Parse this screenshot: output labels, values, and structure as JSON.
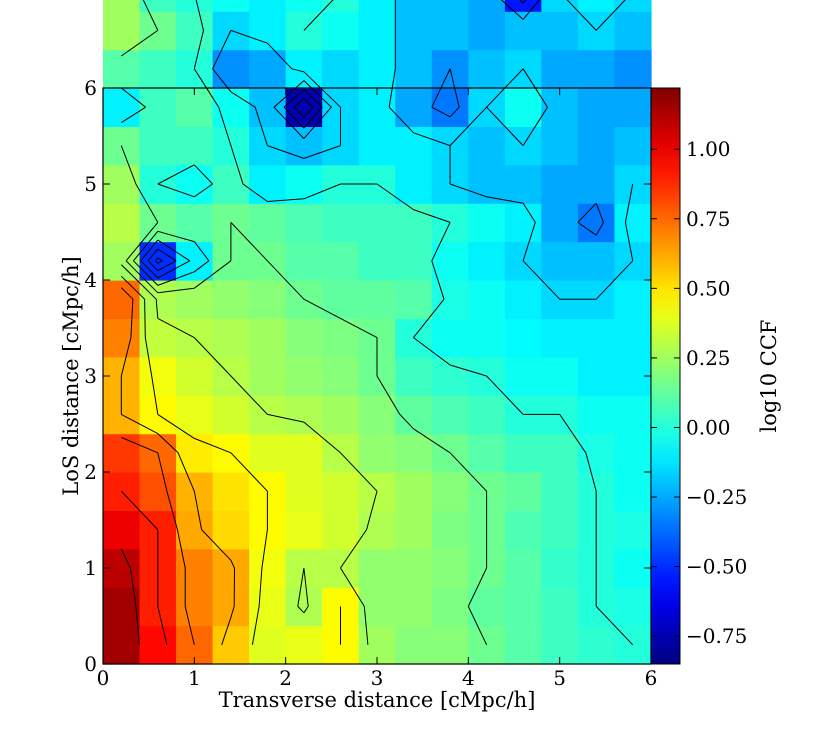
{
  "chart_data": {
    "type": "heatmap",
    "title": "",
    "xlabel": "Transverse distance [cMpc/h]",
    "ylabel": "LoS distance [cMpc/h]",
    "colorbar_label": "log10 CCF",
    "colormap": "jet",
    "xlim": [
      0,
      6
    ],
    "ylim": [
      0,
      6
    ],
    "clim": [
      -0.85,
      1.22
    ],
    "x_ticks": [
      "0",
      "1",
      "2",
      "3",
      "4",
      "5",
      "6"
    ],
    "y_ticks": [
      "0",
      "1",
      "2",
      "3",
      "4",
      "5",
      "6"
    ],
    "colorbar_ticks": [
      "−0.75",
      "−0.50",
      "−0.25",
      "0.00",
      "0.25",
      "0.50",
      "0.75",
      "1.00"
    ],
    "colorbar_tick_values": [
      -0.75,
      -0.5,
      -0.25,
      0.0,
      0.25,
      0.5,
      0.75,
      1.0
    ],
    "contour_levels": [
      -0.75,
      -0.6,
      -0.45,
      -0.3,
      -0.15,
      0.0,
      0.15,
      0.3,
      0.45,
      0.6,
      0.75,
      0.9,
      1.05
    ],
    "cell_size": 0.4,
    "grid_rows_from_bottom": [
      [
        1.15,
        0.95,
        0.75,
        0.55,
        0.38,
        0.4,
        0.45,
        0.25,
        0.2,
        0.2,
        0.15,
        0.1,
        0.05,
        0.02,
        0.0
      ],
      [
        1.15,
        0.9,
        0.7,
        0.62,
        0.4,
        0.28,
        0.45,
        0.22,
        0.22,
        0.18,
        0.12,
        0.1,
        0.05,
        0.0,
        -0.02
      ],
      [
        1.1,
        0.9,
        0.7,
        0.62,
        0.42,
        0.3,
        0.3,
        0.22,
        0.22,
        0.2,
        0.15,
        0.1,
        0.03,
        0.0,
        -0.05
      ],
      [
        1.0,
        0.9,
        0.62,
        0.52,
        0.45,
        0.4,
        0.35,
        0.28,
        0.25,
        0.18,
        0.15,
        0.08,
        0.05,
        0.0,
        -0.02
      ],
      [
        0.9,
        0.8,
        0.6,
        0.5,
        0.45,
        0.38,
        0.35,
        0.3,
        0.25,
        0.2,
        0.15,
        0.12,
        0.05,
        0.0,
        -0.05
      ],
      [
        0.85,
        0.75,
        0.48,
        0.45,
        0.38,
        0.38,
        0.3,
        0.22,
        0.2,
        0.15,
        0.1,
        0.05,
        0.05,
        -0.02,
        -0.05
      ],
      [
        0.6,
        0.45,
        0.4,
        0.35,
        0.3,
        0.28,
        0.25,
        0.2,
        0.12,
        0.08,
        0.05,
        0.0,
        0.0,
        -0.05,
        -0.05
      ],
      [
        0.6,
        0.42,
        0.35,
        0.3,
        0.25,
        0.22,
        0.2,
        0.15,
        0.05,
        0.02,
        0.0,
        -0.05,
        -0.05,
        -0.1,
        -0.1
      ],
      [
        0.7,
        0.32,
        0.3,
        0.28,
        0.25,
        0.2,
        0.18,
        0.15,
        0.0,
        -0.05,
        -0.05,
        -0.08,
        -0.1,
        -0.1,
        -0.1
      ],
      [
        0.75,
        0.28,
        0.25,
        0.22,
        0.2,
        0.15,
        0.12,
        0.12,
        0.1,
        -0.02,
        -0.05,
        -0.1,
        -0.15,
        -0.15,
        -0.1
      ],
      [
        0.25,
        -0.5,
        -0.1,
        0.15,
        0.15,
        0.1,
        0.1,
        0.05,
        0.05,
        -0.05,
        -0.1,
        -0.15,
        -0.2,
        -0.2,
        -0.15
      ],
      [
        0.3,
        0.15,
        0.1,
        0.15,
        0.12,
        0.08,
        0.05,
        0.05,
        0.05,
        0.0,
        -0.05,
        -0.1,
        -0.25,
        -0.35,
        -0.1
      ],
      [
        0.25,
        0.0,
        -0.05,
        0.05,
        -0.1,
        -0.05,
        0.0,
        0.0,
        -0.1,
        -0.15,
        -0.2,
        -0.2,
        -0.25,
        -0.25,
        -0.15
      ],
      [
        0.15,
        0.05,
        0.05,
        0.0,
        -0.15,
        -0.2,
        -0.15,
        -0.1,
        -0.1,
        -0.15,
        -0.2,
        -0.15,
        -0.2,
        -0.25,
        -0.2
      ],
      [
        -0.1,
        0.05,
        0.1,
        -0.05,
        -0.2,
        -0.75,
        -0.15,
        -0.1,
        -0.25,
        -0.35,
        -0.15,
        -0.05,
        -0.2,
        -0.25,
        -0.25
      ],
      [
        0.1,
        0.05,
        0.0,
        -0.3,
        -0.25,
        -0.1,
        -0.15,
        -0.1,
        -0.2,
        -0.3,
        -0.2,
        -0.15,
        -0.25,
        -0.25,
        -0.3
      ],
      [
        0.25,
        0.15,
        0.05,
        -0.15,
        -0.1,
        0.0,
        -0.05,
        -0.1,
        -0.2,
        -0.2,
        -0.25,
        -0.2,
        -0.2,
        -0.15,
        -0.2
      ],
      [
        0.25,
        0.05,
        0.0,
        -0.05,
        -0.1,
        -0.05,
        0.0,
        -0.1,
        -0.2,
        -0.2,
        -0.25,
        -0.55,
        -0.15,
        -0.1,
        -0.15
      ]
    ]
  }
}
